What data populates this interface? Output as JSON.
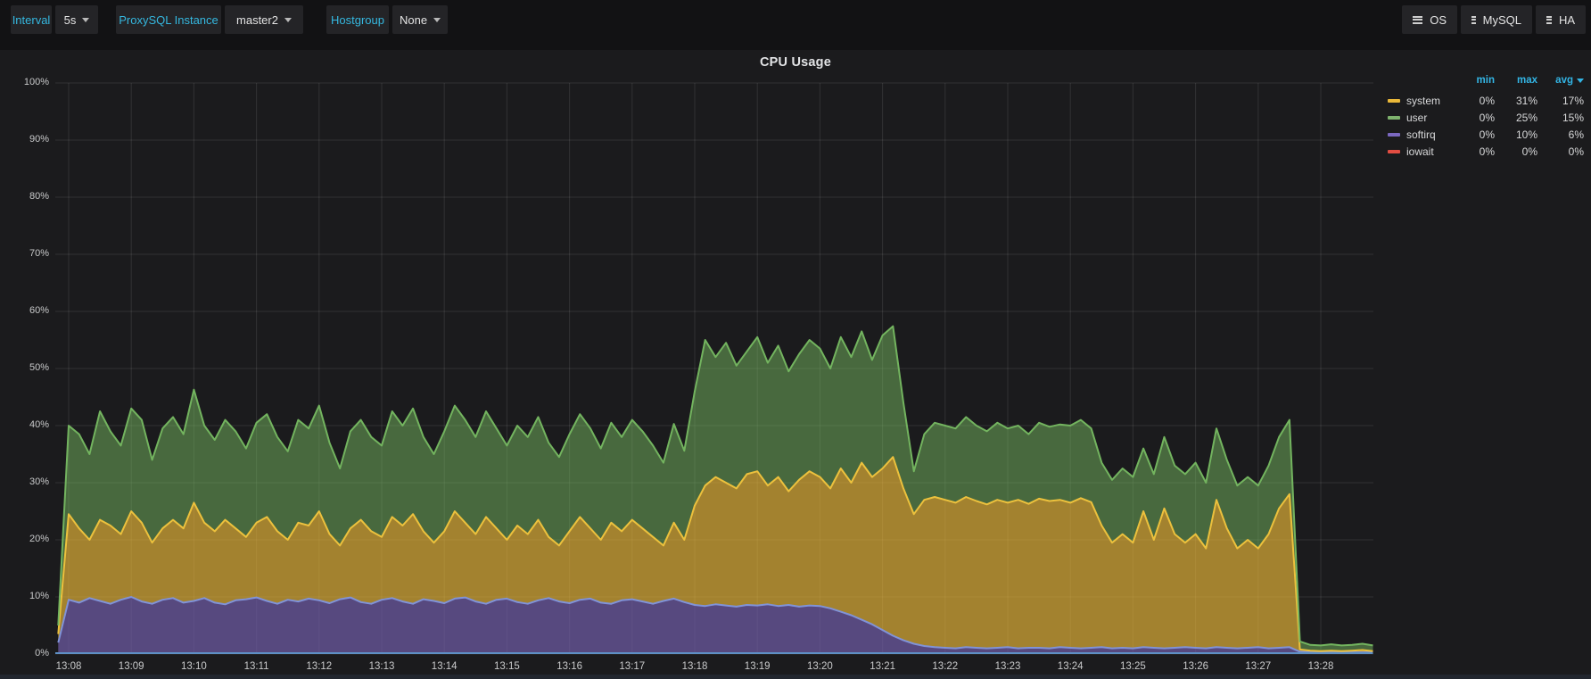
{
  "toolbar": {
    "left_groups": [
      {
        "label": "Interval",
        "value": "5s"
      },
      {
        "label": "ProxySQL Instance",
        "value": "master2"
      },
      {
        "label": "Hostgroup",
        "value": "None"
      }
    ],
    "right_buttons": [
      "OS",
      "MySQL",
      "HA"
    ]
  },
  "panel": {
    "title": "CPU Usage"
  },
  "colors": {
    "accent": "#33b5e5",
    "system_stroke": "#ecc13d",
    "system_fill": "rgba(234,184,57,0.66)",
    "user_stroke": "#73b45f",
    "user_fill": "rgba(115,178,93,0.52)",
    "softirq_stroke": "#8093d8",
    "softirq_fill": "rgba(111,91,165,0.72)",
    "baseline": "#5e8fc4",
    "grid": "rgba(255,255,255,0.10)"
  },
  "legend": {
    "headers": {
      "min": "min",
      "max": "max",
      "avg": "avg"
    },
    "sorted_by": "avg",
    "rows": [
      {
        "name": "system",
        "color": "#eab839",
        "min": "0%",
        "max": "31%",
        "avg": "17%"
      },
      {
        "name": "user",
        "color": "#7eb26d",
        "min": "0%",
        "max": "25%",
        "avg": "15%"
      },
      {
        "name": "softirq",
        "color": "#7b68c0",
        "min": "0%",
        "max": "10%",
        "avg": "6%"
      },
      {
        "name": "iowait",
        "color": "#e24d42",
        "min": "0%",
        "max": "0%",
        "avg": "0%"
      }
    ]
  },
  "chart_data": {
    "type": "area",
    "stacked": true,
    "title": "CPU Usage",
    "unit": "percent",
    "ylim": [
      0,
      100
    ],
    "grid": true,
    "legend_position": "right-table",
    "y_ticks": [
      "0%",
      "10%",
      "20%",
      "30%",
      "40%",
      "50%",
      "60%",
      "70%",
      "80%",
      "90%",
      "100%"
    ],
    "x_ticks": [
      "13:08",
      "13:09",
      "13:10",
      "13:11",
      "13:12",
      "13:13",
      "13:14",
      "13:15",
      "13:16",
      "13:17",
      "13:18",
      "13:19",
      "13:20",
      "13:21",
      "13:22",
      "13:23",
      "13:24",
      "13:25",
      "13:26",
      "13:27",
      "13:28"
    ],
    "x_start": "13:07:50",
    "x_step_seconds": 10,
    "note": "series values below are cumulative stack-top percentages (iowait at bottom of stack, then softirq, system, user)",
    "iowait_top": {
      "constant": 0
    },
    "softirq_top": [
      2.0,
      9.5,
      9.0,
      9.8,
      9.3,
      8.8,
      9.5,
      10.0,
      9.2,
      8.8,
      9.5,
      9.8,
      9.0,
      9.3,
      9.8,
      9.0,
      8.7,
      9.4,
      9.6,
      9.9,
      9.3,
      8.8,
      9.5,
      9.2,
      9.7,
      9.4,
      8.9,
      9.6,
      9.9,
      9.1,
      8.8,
      9.5,
      9.8,
      9.2,
      8.8,
      9.6,
      9.3,
      8.9,
      9.7,
      9.9,
      9.2,
      8.8,
      9.5,
      9.7,
      9.1,
      8.8,
      9.4,
      9.8,
      9.2,
      8.9,
      9.5,
      9.7,
      9.0,
      8.8,
      9.4,
      9.6,
      9.2,
      8.8,
      9.3,
      9.7,
      9.1,
      8.6,
      8.4,
      8.7,
      8.5,
      8.3,
      8.6,
      8.5,
      8.7,
      8.4,
      8.6,
      8.3,
      8.5,
      8.4,
      8.0,
      7.4,
      6.8,
      6.0,
      5.2,
      4.2,
      3.2,
      2.4,
      1.8,
      1.4,
      1.2,
      1.1,
      1.0,
      1.2,
      1.1,
      1.0,
      1.1,
      1.2,
      1.0,
      1.1,
      1.1,
      1.0,
      1.2,
      1.1,
      1.0,
      1.1,
      1.2,
      1.0,
      1.1,
      1.0,
      1.2,
      1.1,
      1.0,
      1.1,
      1.2,
      1.1,
      1.0,
      1.2,
      1.1,
      1.0,
      1.1,
      1.2,
      1.0,
      1.1,
      1.2,
      0.4,
      0.3,
      0.3,
      0.3,
      0.3,
      0.3,
      0.3,
      0.3
    ],
    "system_top": [
      3.5,
      24.5,
      22.0,
      20.0,
      23.5,
      22.5,
      21.0,
      25.0,
      23.0,
      19.5,
      22.0,
      23.5,
      22.0,
      26.5,
      23.0,
      21.5,
      23.5,
      22.0,
      20.5,
      23.0,
      24.0,
      21.5,
      20.0,
      23.0,
      22.5,
      25.0,
      21.0,
      19.0,
      22.0,
      23.5,
      21.5,
      20.5,
      24.0,
      22.5,
      24.5,
      21.5,
      19.5,
      21.5,
      25.0,
      23.0,
      21.0,
      24.0,
      22.0,
      20.0,
      22.5,
      21.0,
      23.5,
      20.5,
      19.0,
      21.5,
      24.0,
      22.0,
      20.0,
      23.0,
      21.5,
      23.5,
      22.0,
      20.5,
      19.0,
      23.0,
      20.0,
      26.0,
      29.5,
      31.0,
      30.0,
      29.0,
      31.5,
      32.0,
      29.5,
      31.0,
      28.5,
      30.5,
      32.0,
      31.0,
      29.0,
      32.5,
      30.0,
      33.5,
      31.0,
      32.5,
      34.5,
      29.0,
      24.5,
      27.0,
      27.5,
      27.0,
      26.5,
      27.5,
      26.8,
      26.2,
      27.0,
      26.5,
      27.0,
      26.3,
      27.2,
      26.8,
      27.0,
      26.5,
      27.3,
      26.6,
      22.5,
      19.5,
      21.0,
      19.5,
      25.0,
      20.0,
      25.5,
      21.0,
      19.5,
      21.0,
      18.5,
      27.0,
      22.0,
      18.5,
      20.0,
      18.5,
      21.0,
      25.5,
      28.0,
      0.8,
      0.6,
      0.5,
      0.6,
      0.5,
      0.6,
      0.7,
      0.5
    ],
    "user_top": [
      5.0,
      40.0,
      38.5,
      35.0,
      42.5,
      39.0,
      36.5,
      43.0,
      41.0,
      34.0,
      39.5,
      41.5,
      38.5,
      46.3,
      40.0,
      37.5,
      41.0,
      39.0,
      36.0,
      40.5,
      42.0,
      38.0,
      35.5,
      41.0,
      39.5,
      43.5,
      37.0,
      32.5,
      39.0,
      41.0,
      38.0,
      36.5,
      42.5,
      40.0,
      43.0,
      38.0,
      35.0,
      39.0,
      43.5,
      41.0,
      38.0,
      42.5,
      39.5,
      36.5,
      40.0,
      38.0,
      41.5,
      37.0,
      34.5,
      38.5,
      42.0,
      39.5,
      36.0,
      40.5,
      38.0,
      41.0,
      39.0,
      36.5,
      33.5,
      40.3,
      35.6,
      46.0,
      55.0,
      52.0,
      54.5,
      50.5,
      53.0,
      55.5,
      51.0,
      54.0,
      49.5,
      52.5,
      55.0,
      53.5,
      50.0,
      55.5,
      52.0,
      56.5,
      51.5,
      55.8,
      57.4,
      44.0,
      32.0,
      38.5,
      40.5,
      40.0,
      39.5,
      41.5,
      40.0,
      39.0,
      40.5,
      39.5,
      40.0,
      38.5,
      40.5,
      39.8,
      40.2,
      40.0,
      41.0,
      39.5,
      33.5,
      30.5,
      32.5,
      31.0,
      36.0,
      31.5,
      38.0,
      33.0,
      31.5,
      33.5,
      30.0,
      39.5,
      34.0,
      29.5,
      31.0,
      29.5,
      33.0,
      38.0,
      41.0,
      2.2,
      1.6,
      1.5,
      1.7,
      1.5,
      1.6,
      1.8,
      1.5
    ]
  }
}
